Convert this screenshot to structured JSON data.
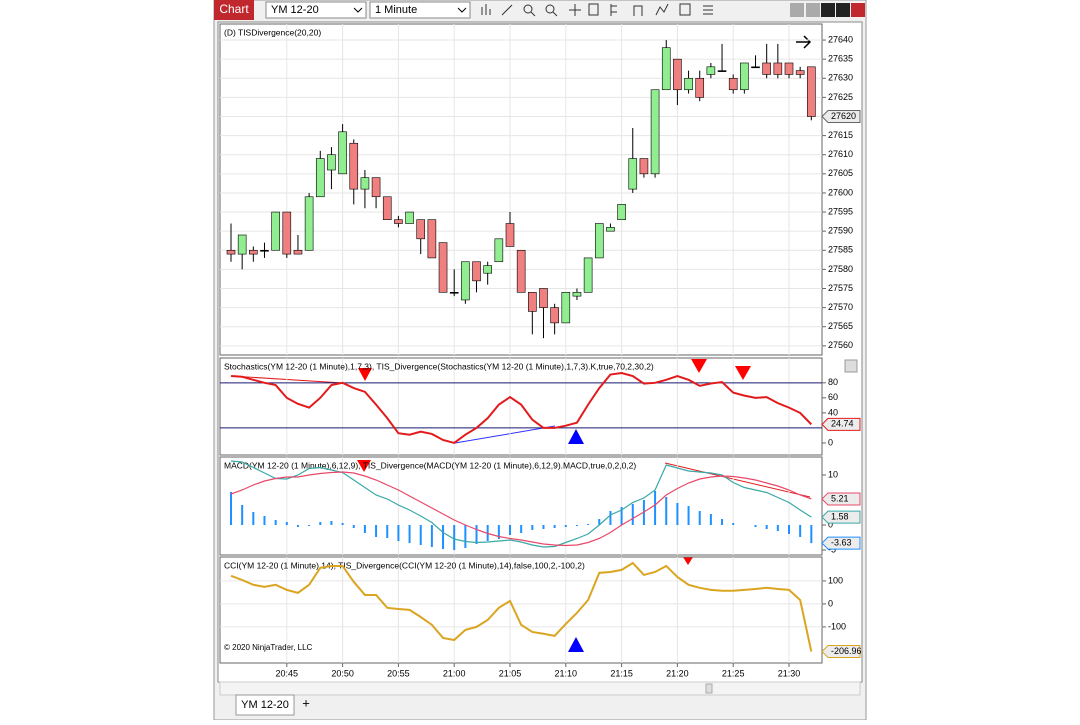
{
  "toolbar": {
    "app": "Chart",
    "instrument": "YM 12-20",
    "interval": "1 Minute"
  },
  "tabs": [
    "YM 12-20",
    "+"
  ],
  "copyright": "© 2020 NinjaTrader, LLC",
  "chart_data": [
    {
      "type": "candlestick",
      "title": "(D) TISDivergence(20,20)",
      "categories": [
        null,
        null,
        null,
        null,
        null,
        "20:45",
        null,
        null,
        null,
        null,
        "20:50",
        null,
        null,
        null,
        null,
        "20:55",
        null,
        null,
        null,
        null,
        "21:00",
        null,
        null,
        null,
        null,
        "21:05",
        null,
        null,
        null,
        null,
        "21:10",
        null,
        null,
        null,
        null,
        "21:15",
        null,
        null,
        null,
        null,
        "21:20",
        null,
        null,
        null,
        null,
        "21:25",
        null,
        null,
        null,
        null,
        "21:30",
        null,
        null
      ],
      "open": [
        27585,
        27584,
        27585,
        27585,
        27585,
        27595,
        27585,
        27585,
        27599,
        27606,
        27605,
        27613,
        27601,
        27604,
        27599,
        27593,
        27592,
        27593,
        27593,
        27587,
        27574,
        27572,
        27582,
        27579,
        27582,
        27592,
        27585,
        27574,
        27575,
        27570,
        27566,
        27573,
        27574,
        27583,
        27590,
        27593,
        27601,
        27609,
        27605,
        27627,
        27635,
        27627,
        27630,
        27631,
        27632,
        27630,
        27627,
        27633,
        27634,
        27634,
        27634,
        27632,
        27633
      ],
      "high": [
        27592,
        27589,
        27586,
        27587,
        27595,
        27595,
        27589,
        27600,
        27611,
        27612,
        27618,
        27614,
        27606,
        27604,
        27599,
        27594,
        27595,
        27593,
        27593,
        27587,
        27580,
        27582,
        27582,
        27582,
        27588,
        27595,
        27585,
        27574,
        27575,
        27571,
        27574,
        27575,
        27583,
        27592,
        27592,
        27597,
        27617,
        27609,
        27627,
        27640,
        27635,
        27632,
        27632,
        27634,
        27639,
        27631,
        27634,
        27636,
        27639,
        27639,
        27634,
        27633,
        27633
      ],
      "low": [
        27582,
        27580,
        27582,
        27583,
        27585,
        27583,
        27584,
        27585,
        27599,
        27601,
        27605,
        27597,
        27596,
        27596,
        27593,
        27591,
        27592,
        27584,
        27583,
        27574,
        27573,
        27571,
        27574,
        27576,
        27582,
        27586,
        27574,
        27563,
        27562,
        27563,
        27566,
        27572,
        27574,
        27583,
        27590,
        27593,
        27600,
        27604,
        27604,
        27627,
        27623,
        27626,
        27624,
        27630,
        27632,
        27626,
        27626,
        27633,
        27630,
        27630,
        27630,
        27630,
        27619
      ],
      "close": [
        27584,
        27589,
        27584,
        27585,
        27595,
        27584,
        27584,
        27599,
        27609,
        27610,
        27616,
        27601,
        27604,
        27599,
        27593,
        27592,
        27595,
        27588,
        27583,
        27574,
        27574,
        27582,
        27577,
        27581,
        27588,
        27586,
        27574,
        27569,
        27570,
        27566,
        27574,
        27574,
        27583,
        27592,
        27591,
        27597,
        27609,
        27605,
        27627,
        27638,
        27627,
        27630,
        27625,
        27633,
        27632,
        27627,
        27634,
        27633,
        27631,
        27631,
        27631,
        27631,
        27620
      ],
      "up_color": "#90ee90",
      "down_color": "#f08080",
      "ylim": [
        27557.6,
        27644.2
      ],
      "yticks": [
        27560,
        27565,
        27570,
        27575,
        27580,
        27585,
        27590,
        27595,
        27600,
        27605,
        27610,
        27615,
        27620,
        27625,
        27630,
        27635,
        27640
      ],
      "grid": true
    },
    {
      "type": "line",
      "title": "Stochastics(YM 12-20 (1 Minute),1,7,3), TIS_Divergence(Stochastics(YM 12-20 (1 Minute),1,7,3).K,true,70,2,30,2)",
      "series": [
        {
          "color": "#e31a1c",
          "values": [
            89,
            88,
            84,
            80,
            77,
            60,
            52,
            47,
            60,
            77,
            80,
            73,
            68,
            51,
            33,
            13,
            11,
            15,
            12,
            4,
            0,
            11,
            20,
            33,
            51,
            61,
            51,
            31,
            20,
            20,
            23,
            27,
            51,
            73,
            91,
            93,
            89,
            79,
            80,
            84,
            89,
            84,
            76,
            79,
            81,
            67,
            63,
            60,
            61,
            53,
            47,
            40,
            24.74
          ]
        }
      ],
      "hlines": [
        80,
        20
      ],
      "hline_color": "#191970",
      "ylim": [
        -16,
        113
      ],
      "yticks": [
        0,
        40,
        60,
        80
      ],
      "grid": false
    },
    {
      "type": "line",
      "title": "MACD(YM 12-20 (1 Minute),6,12,9), TIS_Divergence(MACD(YM 12-20 (1 Minute),6,12,9).MACD,true,0,2,0,2)",
      "series": [
        {
          "color": "#1e90ff",
          "style": "bar",
          "values": [
            6.6,
            4.0,
            2.6,
            1.8,
            1.0,
            0.6,
            -0.4,
            -0.2,
            0.6,
            0.8,
            0.4,
            -0.6,
            -1.6,
            -2.4,
            -2.6,
            -3.2,
            -3.6,
            -4.0,
            -4.4,
            -4.8,
            -5.0,
            -4.6,
            -3.8,
            -3.2,
            -2.8,
            -2.0,
            -1.6,
            -1.0,
            -0.8,
            -0.6,
            -0.4,
            -0.2,
            0.2,
            1.2,
            2.8,
            3.6,
            4.2,
            5.0,
            6.8,
            5.6,
            4.4,
            3.8,
            2.8,
            2.2,
            1.2,
            0.4,
            0,
            -0.4,
            -0.8,
            -1.2,
            -1.8,
            -2.4,
            -3.63
          ]
        },
        {
          "color": "#3aa8a8",
          "values": [
            12.8,
            12.6,
            11.5,
            10.4,
            9.3,
            9.2,
            10.0,
            11.3,
            11.5,
            11.0,
            10.5,
            9.0,
            7.5,
            6.0,
            5.2,
            4.0,
            3.0,
            1.8,
            0.5,
            -1.5,
            -2.8,
            -3.3,
            -3.5,
            -3.4,
            -3.2,
            -3.0,
            -3.4,
            -4.0,
            -4.4,
            -4.3,
            -3.5,
            -2.7,
            -1.8,
            0,
            2.0,
            3.0,
            4.5,
            5.4,
            7.0,
            12.0,
            11.4,
            10.8,
            10.6,
            10.4,
            10.0,
            8.5,
            7.5,
            7.0,
            6.5,
            5.5,
            4.5,
            3.0,
            1.58
          ]
        },
        {
          "color": "#e8486a",
          "values": [
            6.2,
            7.0,
            8.0,
            8.8,
            9.3,
            9.6,
            9.6,
            10.0,
            10.3,
            10.5,
            10.6,
            10.4,
            9.8,
            9.0,
            8.0,
            7.0,
            5.8,
            4.6,
            3.4,
            2.2,
            1.0,
            0,
            -0.9,
            -1.7,
            -2.3,
            -2.7,
            -3.0,
            -3.4,
            -3.8,
            -4.0,
            -4.1,
            -4.0,
            -3.5,
            -2.7,
            -1.5,
            0,
            1.3,
            2.6,
            4.0,
            6.0,
            7.3,
            8.4,
            9.2,
            9.6,
            9.8,
            9.7,
            9.4,
            9.0,
            8.4,
            7.8,
            7.0,
            6.0,
            5.21
          ]
        }
      ],
      "ylim": [
        -6,
        13.6
      ],
      "yticks": [
        -5,
        0,
        10
      ],
      "grid": false
    },
    {
      "type": "line",
      "title": "CCI(YM 12-20 (1 Minute),14), TIS_Divergence(CCI(YM 12-20 (1 Minute),14),false,100,2,-100,2)",
      "series": [
        {
          "color": "#daa520",
          "values": [
            122,
            104,
            83,
            74,
            83,
            61,
            48,
            83,
            157,
            165,
            165,
            96,
            39,
            39,
            -17,
            -22,
            -26,
            -57,
            -91,
            -148,
            -157,
            -113,
            -100,
            -70,
            -17,
            13,
            -91,
            -122,
            -130,
            -139,
            -87,
            -39,
            17,
            135,
            139,
            148,
            178,
            126,
            139,
            165,
            117,
            83,
            70,
            61,
            57,
            57,
            61,
            65,
            70,
            65,
            61,
            17,
            -206.96
          ]
        }
      ],
      "ylim": [
        -257,
        204
      ],
      "yticks": [
        -100,
        0,
        100
      ],
      "grid": true
    }
  ]
}
